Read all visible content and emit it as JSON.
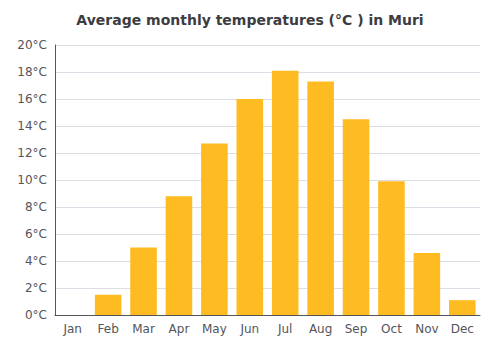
{
  "chart_data": {
    "type": "bar",
    "title": "Average monthly temperatures (°C ) in Muri",
    "categories": [
      "Jan",
      "Feb",
      "Mar",
      "Apr",
      "May",
      "Jun",
      "Jul",
      "Aug",
      "Sep",
      "Oct",
      "Nov",
      "Dec"
    ],
    "values": [
      0.0,
      1.5,
      5.0,
      8.8,
      12.7,
      16.0,
      18.1,
      17.3,
      14.5,
      9.9,
      4.6,
      1.1
    ],
    "color": "#FFBB22",
    "ylim": [
      0,
      20
    ],
    "yticks": [
      {
        "value": 0,
        "label": "0°C"
      },
      {
        "value": 2,
        "label": "2°C"
      },
      {
        "value": 4,
        "label": "4°C"
      },
      {
        "value": 6,
        "label": "6°C"
      },
      {
        "value": 8,
        "label": "8°C"
      },
      {
        "value": 10,
        "label": "10°C"
      },
      {
        "value": 12,
        "label": "12°C"
      },
      {
        "value": 14,
        "label": "14°C"
      },
      {
        "value": 16,
        "label": "16°C"
      },
      {
        "value": 18,
        "label": "18°C"
      },
      {
        "value": 20,
        "label": "20°C"
      }
    ],
    "grid": true
  }
}
